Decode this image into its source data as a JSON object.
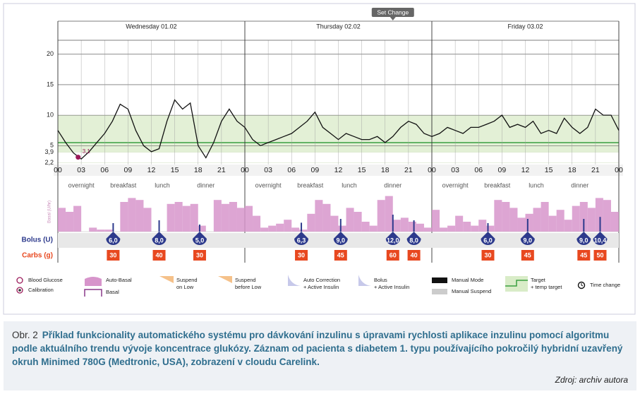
{
  "set_change": "Set Change",
  "chart_data": {
    "type": "line",
    "days": [
      "Wednesday 01.02",
      "Thursday 02.02",
      "Friday 03.02"
    ],
    "periods": [
      "overnight",
      "breakfast",
      "lunch",
      "dinner"
    ],
    "x": [
      0,
      1,
      2,
      3,
      4,
      5,
      6,
      7,
      8,
      9,
      10,
      11,
      12,
      13,
      14,
      15,
      16,
      17,
      18,
      19,
      20,
      21,
      22,
      23,
      24,
      25,
      26,
      27,
      28,
      29,
      30,
      31,
      32,
      33,
      34,
      35,
      36,
      37,
      38,
      39,
      40,
      41,
      42,
      43,
      44,
      45,
      46,
      47,
      48,
      49,
      50,
      51,
      52,
      53,
      54,
      55,
      56,
      57,
      58,
      59,
      60,
      61,
      62,
      63,
      64,
      65,
      66,
      67,
      68,
      69,
      70,
      71,
      72
    ],
    "values": [
      7.5,
      5.5,
      3.8,
      2.8,
      4.0,
      5.5,
      7.0,
      9.0,
      11.8,
      11.0,
      7.5,
      5.0,
      4.0,
      4.5,
      9.0,
      12.5,
      11.0,
      12.0,
      5.0,
      3.0,
      5.5,
      9.0,
      11.0,
      9.0,
      8,
      6,
      5,
      5.5,
      6,
      6.5,
      7,
      8,
      9,
      10.5,
      8,
      7,
      6,
      7,
      6.5,
      6,
      6,
      6.5,
      5.5,
      6.5,
      8,
      9,
      8.5,
      7,
      6.5,
      7,
      8,
      7.5,
      7,
      8,
      8,
      8.5,
      9,
      10,
      8,
      8.5,
      8,
      9,
      7,
      7.5,
      7,
      9.5,
      8,
      7,
      8,
      11,
      10,
      10,
      7.5
    ],
    "color": "#111111",
    "xlim": [
      0,
      72
    ],
    "xticks": [
      {
        "value": 0,
        "label": "00"
      },
      {
        "value": 3,
        "label": "03"
      },
      {
        "value": 6,
        "label": "06"
      },
      {
        "value": 9,
        "label": "09"
      },
      {
        "value": 12,
        "label": "12"
      },
      {
        "value": 15,
        "label": "15"
      },
      {
        "value": 18,
        "label": "18"
      },
      {
        "value": 21,
        "label": "21"
      },
      {
        "value": 24,
        "label": "00"
      },
      {
        "value": 27,
        "label": "03"
      },
      {
        "value": 30,
        "label": "06"
      },
      {
        "value": 33,
        "label": "09"
      },
      {
        "value": 36,
        "label": "12"
      },
      {
        "value": 39,
        "label": "15"
      },
      {
        "value": 42,
        "label": "18"
      },
      {
        "value": 45,
        "label": "21"
      },
      {
        "value": 48,
        "label": "00"
      },
      {
        "value": 51,
        "label": "03"
      },
      {
        "value": 54,
        "label": "06"
      },
      {
        "value": 57,
        "label": "09"
      },
      {
        "value": 60,
        "label": "12"
      },
      {
        "value": 63,
        "label": "15"
      },
      {
        "value": 66,
        "label": "18"
      },
      {
        "value": 69,
        "label": "21"
      },
      {
        "value": 72,
        "label": "00"
      }
    ],
    "ylim": [
      1.9,
      22.3
    ],
    "yticks": [
      {
        "value": 2.2,
        "label": "2,2"
      },
      {
        "value": 3.9,
        "label": "3,9"
      },
      5,
      10,
      15,
      20
    ],
    "target_range": [
      3.9,
      10
    ],
    "target": 5.5,
    "calibration": {
      "x": 2.6,
      "value": 3.1,
      "label": "3,1"
    },
    "basal": {
      "label": "Basal (U/hr)",
      "color": "#d795cb",
      "ylim": [
        0,
        2
      ],
      "x": [
        0,
        1,
        2,
        3,
        4,
        5,
        6,
        7,
        8,
        9,
        10,
        11,
        12,
        13,
        14,
        15,
        16,
        17,
        18,
        19,
        20,
        21,
        22,
        23,
        24,
        25,
        26,
        27,
        28,
        29,
        30,
        31,
        32,
        33,
        34,
        35,
        36,
        37,
        38,
        39,
        40,
        41,
        42,
        43,
        44,
        45,
        46,
        47,
        48,
        49,
        50,
        51,
        52,
        53,
        54,
        55,
        56,
        57,
        58,
        59,
        60,
        61,
        62,
        63,
        64,
        65,
        66,
        67,
        68,
        69,
        70,
        71
      ],
      "values": [
        1.2,
        1.0,
        1.3,
        0,
        0.2,
        0.1,
        0.1,
        0,
        1.5,
        1.7,
        1.6,
        1.2,
        0,
        0,
        1.4,
        1.5,
        1.3,
        1.4,
        0.3,
        0,
        1.6,
        1.4,
        1.5,
        1.2,
        1.3,
        0.8,
        0.2,
        0.3,
        0.4,
        0.6,
        0.2,
        0.1,
        0.9,
        1.6,
        1.4,
        0.8,
        0.3,
        1.2,
        1.0,
        0.5,
        0.3,
        1.6,
        1.8,
        0.6,
        0.7,
        0.5,
        0.4,
        0.2,
        1.1,
        0.2,
        0.3,
        0.8,
        0.5,
        0.3,
        0.6,
        0.3,
        1.6,
        1.5,
        1.2,
        0.7,
        0.9,
        1.2,
        1.5,
        0.8,
        1.1,
        0.6,
        1.3,
        1.5,
        1.2,
        1.7,
        1.6,
        1.0
      ]
    },
    "bolus": {
      "label": "Bolus (U)",
      "color": "#2d3a8c",
      "x": [
        7.1,
        13.0,
        18.2,
        31.25,
        36.3,
        43.0,
        45.7,
        55.2,
        60.3,
        67.5,
        69.6
      ],
      "values": [
        6,
        8,
        5,
        6.3,
        9,
        12,
        8,
        6,
        9,
        9,
        10.4
      ],
      "value_labels": [
        "6,0",
        "8,0",
        "5,0",
        "6,3",
        "9,0",
        "12,0",
        "8,0",
        "6,0",
        "9,0",
        "9,0",
        "10,4"
      ]
    },
    "carbs": {
      "label": "Carbs (g)",
      "color": "#e8481f",
      "x": [
        7.1,
        13.0,
        18.2,
        31.25,
        36.3,
        43.0,
        45.7,
        55.2,
        60.3,
        67.5,
        69.6
      ],
      "values": [
        30,
        40,
        30,
        30,
        45,
        60,
        40,
        30,
        45,
        45,
        50
      ]
    }
  },
  "legend": [
    {
      "lines": [
        "Blood Glucose"
      ]
    },
    {
      "lines": [
        "Calibration"
      ]
    },
    {
      "lines": [
        "Auto-Basal"
      ]
    },
    {
      "lines": [
        "Basal"
      ]
    },
    {
      "lines": [
        "Suspend",
        "on Low"
      ]
    },
    {
      "lines": [
        "Suspend",
        "before Low"
      ]
    },
    {
      "lines": [
        "Auto Correction",
        "+ Active Insulin"
      ]
    },
    {
      "lines": [
        "Bolus",
        "+ Active Insulin"
      ]
    },
    {
      "lines": [
        "Manual Mode"
      ]
    },
    {
      "lines": [
        "Manual Suspend"
      ]
    },
    {
      "lines": [
        "Target",
        "+ temp target"
      ]
    },
    {
      "lines": [
        "Time change"
      ]
    }
  ],
  "caption": {
    "figure": "Obr. 2",
    "text": "Příklad funkcionality automatického systému pro dávkování inzulinu s úpravami rychlosti aplikace inzulinu pomocí algoritmu podle aktuálního trendu vývoje koncentrace glukózy. Záznam od pacienta s diabetem 1. typu používajícího pokročilý hybridní uzavřený okruh Minimed 780G (Medtronic, USA), zobrazení v cloudu Carelink.",
    "source": "Zdroj: archiv autora"
  }
}
